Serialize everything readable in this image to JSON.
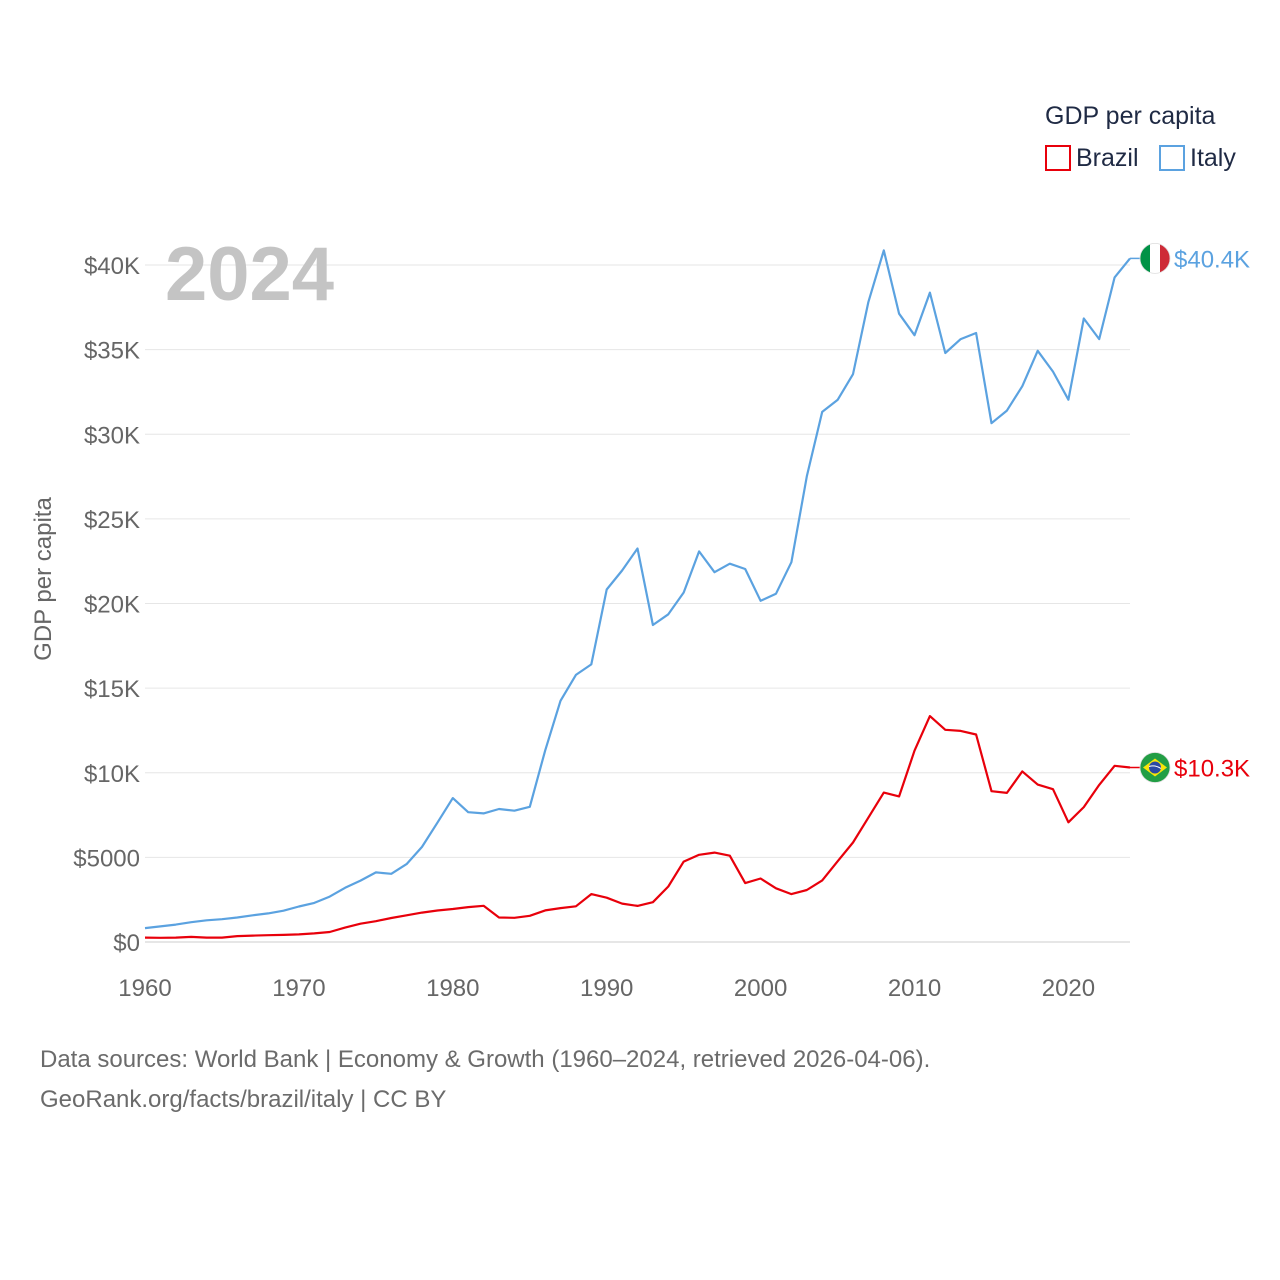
{
  "chart_data": {
    "type": "line",
    "title_year": "2024",
    "ylabel": "GDP per capita",
    "legend": {
      "title": "GDP per capita",
      "placement": "top-right"
    },
    "x_ticks": [
      1960,
      1970,
      1980,
      1990,
      2000,
      2010,
      2020
    ],
    "y_ticks": [
      {
        "value": 0,
        "label": "$0"
      },
      {
        "value": 5000,
        "label": "$5000"
      },
      {
        "value": 10000,
        "label": "$10K"
      },
      {
        "value": 15000,
        "label": "$15K"
      },
      {
        "value": 20000,
        "label": "$20K"
      },
      {
        "value": 25000,
        "label": "$25K"
      },
      {
        "value": 30000,
        "label": "$30K"
      },
      {
        "value": 35000,
        "label": "$35K"
      },
      {
        "value": 40000,
        "label": "$40K"
      }
    ],
    "xlim": [
      1960,
      2024
    ],
    "ylim": [
      0,
      40000
    ],
    "x": [
      1960,
      1961,
      1962,
      1963,
      1964,
      1965,
      1966,
      1967,
      1968,
      1969,
      1970,
      1971,
      1972,
      1973,
      1974,
      1975,
      1976,
      1977,
      1978,
      1979,
      1980,
      1981,
      1982,
      1983,
      1984,
      1985,
      1986,
      1987,
      1988,
      1989,
      1990,
      1991,
      1992,
      1993,
      1994,
      1995,
      1996,
      1997,
      1998,
      1999,
      2000,
      2001,
      2002,
      2003,
      2004,
      2005,
      2006,
      2007,
      2008,
      2009,
      2010,
      2011,
      2012,
      2013,
      2014,
      2015,
      2016,
      2017,
      2018,
      2019,
      2020,
      2021,
      2022,
      2023,
      2024
    ],
    "series": [
      {
        "name": "Brazil",
        "color": "#e8000b",
        "end_label": "$10.3K",
        "flag": "brazil",
        "values": [
          260,
          250,
          260,
          300,
          260,
          260,
          350,
          380,
          400,
          420,
          450,
          510,
          590,
          850,
          1080,
          1230,
          1420,
          1580,
          1740,
          1860,
          1950,
          2060,
          2140,
          1450,
          1430,
          1550,
          1870,
          2000,
          2110,
          2830,
          2620,
          2270,
          2130,
          2350,
          3280,
          4750,
          5150,
          5280,
          5100,
          3480,
          3750,
          3170,
          2830,
          3070,
          3640,
          4770,
          5880,
          7350,
          8830,
          8600,
          11300,
          13350,
          12540,
          12470,
          12260,
          8910,
          8810,
          10080,
          9300,
          9030,
          7070,
          7970,
          9280,
          10410,
          10310
        ]
      },
      {
        "name": "Italy",
        "color": "#5ba2e0",
        "end_label": "$40.4K",
        "flag": "italy",
        "values": [
          820,
          920,
          1030,
          1170,
          1280,
          1350,
          1450,
          1580,
          1690,
          1850,
          2100,
          2310,
          2680,
          3200,
          3630,
          4110,
          4030,
          4600,
          5620,
          7050,
          8500,
          7670,
          7600,
          7860,
          7760,
          7990,
          11320,
          14250,
          15780,
          16400,
          20830,
          21950,
          23250,
          18730,
          19360,
          20650,
          23080,
          21850,
          22350,
          22040,
          20160,
          20580,
          22440,
          27510,
          31320,
          32030,
          33550,
          37820,
          40860,
          37120,
          35850,
          38370,
          34800,
          35620,
          35980,
          30650,
          31400,
          32840,
          34930,
          33700,
          32040,
          36840,
          35620,
          39270,
          40390
        ]
      }
    ]
  },
  "footer": {
    "line1": "Data sources: World Bank | Economy & Growth (1960–2024, retrieved 2026-04-06).",
    "line2": "GeoRank.org/facts/brazil/italy | CC BY"
  }
}
